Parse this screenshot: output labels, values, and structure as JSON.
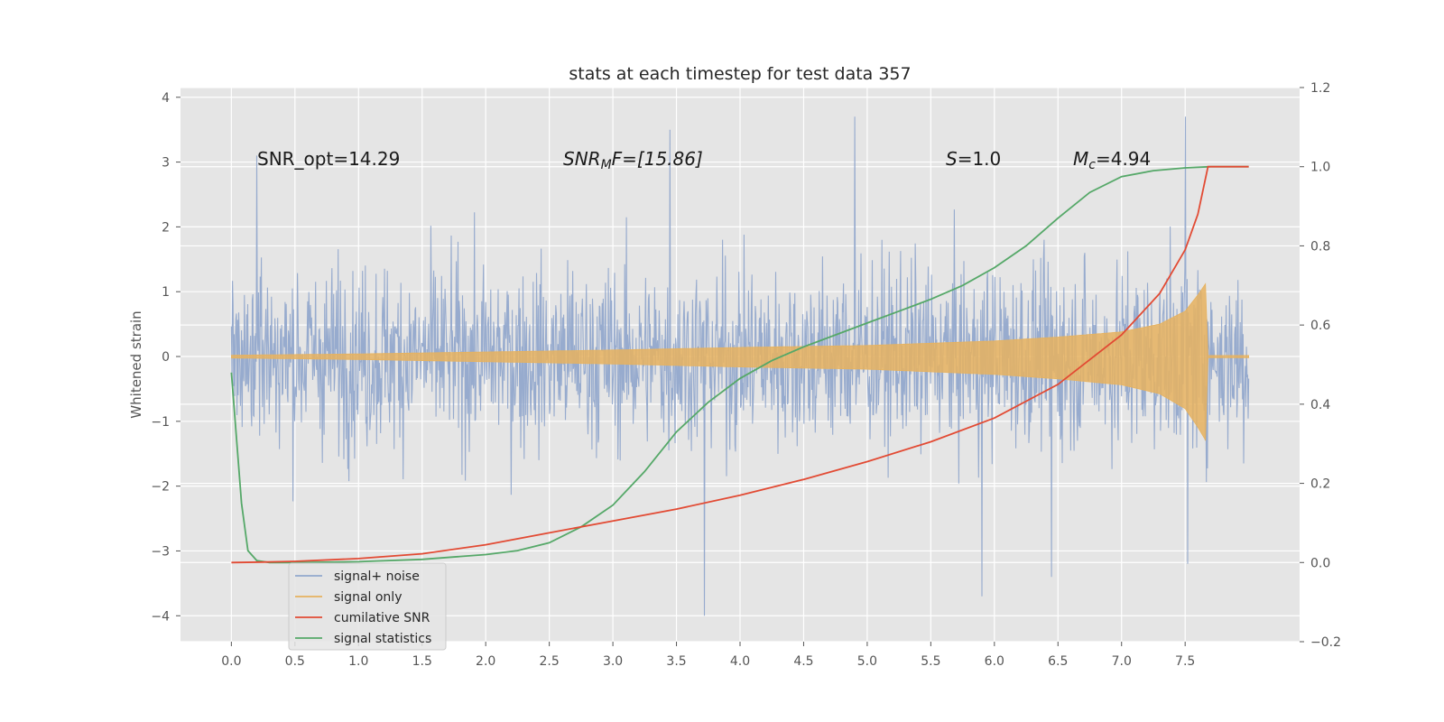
{
  "chart_data": {
    "type": "line",
    "title": "stats at each timestep for test data 357",
    "xlabel": "",
    "ylabel": "Whitened strain",
    "y2label": "",
    "xlim": [
      -0.4,
      8.4
    ],
    "ylim": [
      -4.4,
      4.15
    ],
    "y2lim": [
      -0.2,
      1.2
    ],
    "x_ticks": [
      "0.0",
      "0.5",
      "1.0",
      "1.5",
      "2.0",
      "2.5",
      "3.0",
      "3.5",
      "4.0",
      "4.5",
      "5.0",
      "5.5",
      "6.0",
      "6.5",
      "7.0",
      "7.5"
    ],
    "y_ticks": [
      "−4",
      "−3",
      "−2",
      "−1",
      "0",
      "1",
      "2",
      "3",
      "4"
    ],
    "y2_ticks": [
      "−0.2",
      "0.0",
      "0.2",
      "0.4",
      "0.6",
      "0.8",
      "1.0",
      "1.2"
    ],
    "grid": true,
    "legend_position": "lower-left",
    "annotations": {
      "snr_opt": "SNR_opt=14.29",
      "snr_mf_main": "SNR",
      "snr_mf_sub": "M",
      "snr_mf_rest": "F=[15.86]",
      "s_main": "S",
      "s_rest": "=1.0",
      "mc_main": "M",
      "mc_sub": "c",
      "mc_rest": "=4.94"
    },
    "series": [
      {
        "name": "signal+ noise",
        "axis": "left",
        "color": "#92a8cc",
        "description_values": {
          "x_range": [
            0.0,
            8.0
          ],
          "approx_amplitude_range": [
            -3.7,
            3.75
          ]
        },
        "peaks": [
          [
            0.2,
            3.1
          ],
          [
            3.45,
            3.5
          ],
          [
            4.9,
            3.7
          ],
          [
            7.5,
            3.7
          ],
          [
            3.72,
            -4.0
          ],
          [
            5.9,
            -3.7
          ],
          [
            6.45,
            -3.4
          ],
          [
            7.52,
            -3.2
          ]
        ]
      },
      {
        "name": "signal only",
        "axis": "left",
        "color": "#e6b25f",
        "envelope": [
          [
            0.0,
            0.02
          ],
          [
            1.0,
            0.04
          ],
          [
            2.0,
            0.07
          ],
          [
            3.0,
            0.1
          ],
          [
            4.0,
            0.14
          ],
          [
            5.0,
            0.17
          ],
          [
            6.0,
            0.24
          ],
          [
            6.5,
            0.3
          ],
          [
            7.0,
            0.38
          ],
          [
            7.3,
            0.5
          ],
          [
            7.5,
            0.7
          ],
          [
            7.6,
            0.95
          ],
          [
            7.67,
            1.15
          ],
          [
            7.68,
            0.0
          ],
          [
            8.0,
            0.0
          ]
        ]
      },
      {
        "name": "cumilative SNR",
        "axis": "right",
        "color": "#e24a33",
        "x": [
          0.0,
          0.25,
          0.5,
          1.0,
          1.5,
          2.0,
          2.5,
          3.0,
          3.5,
          4.0,
          4.5,
          5.0,
          5.5,
          6.0,
          6.5,
          7.0,
          7.3,
          7.5,
          7.6,
          7.68,
          8.0
        ],
        "values": [
          0.0,
          0.001,
          0.003,
          0.01,
          0.022,
          0.045,
          0.075,
          0.105,
          0.135,
          0.17,
          0.21,
          0.255,
          0.305,
          0.365,
          0.45,
          0.575,
          0.68,
          0.79,
          0.88,
          1.0,
          1.0
        ]
      },
      {
        "name": "signal statistics",
        "axis": "right",
        "color": "#55a868",
        "x": [
          0.0,
          0.08,
          0.13,
          0.2,
          0.3,
          0.5,
          1.0,
          1.5,
          2.0,
          2.25,
          2.5,
          2.75,
          3.0,
          3.25,
          3.5,
          3.75,
          4.0,
          4.25,
          4.5,
          4.75,
          5.0,
          5.25,
          5.5,
          5.75,
          6.0,
          6.25,
          6.5,
          6.75,
          7.0,
          7.25,
          7.5,
          7.7,
          8.0
        ],
        "values": [
          0.48,
          0.15,
          0.03,
          0.005,
          0.0,
          0.0,
          0.002,
          0.008,
          0.02,
          0.03,
          0.05,
          0.09,
          0.145,
          0.23,
          0.33,
          0.405,
          0.465,
          0.51,
          0.545,
          0.575,
          0.605,
          0.635,
          0.665,
          0.7,
          0.745,
          0.8,
          0.87,
          0.935,
          0.975,
          0.99,
          0.997,
          1.0,
          1.0
        ]
      }
    ]
  }
}
